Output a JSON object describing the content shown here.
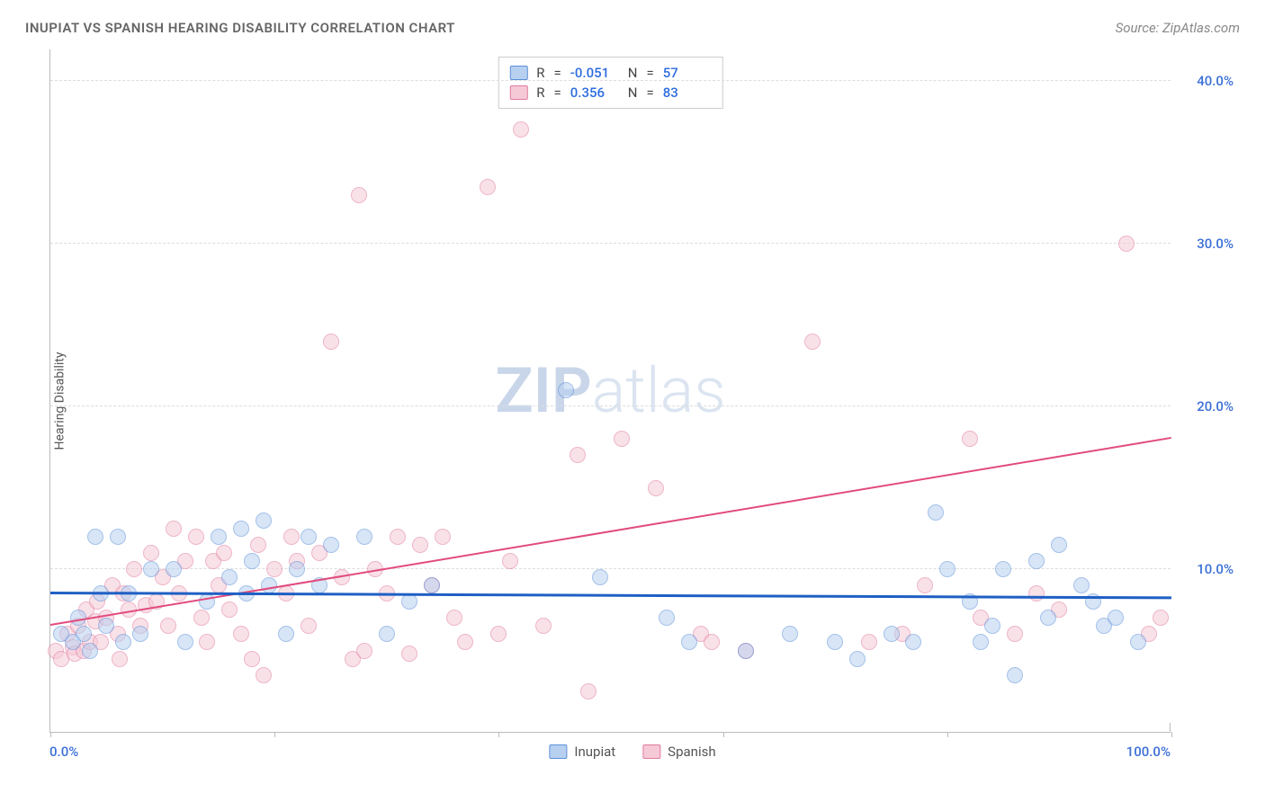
{
  "title": "INUPIAT VS SPANISH HEARING DISABILITY CORRELATION CHART",
  "source": "Source: ZipAtlas.com",
  "y_axis_label": "Hearing Disability",
  "watermark_bold": "ZIP",
  "watermark_light": "atlas",
  "watermark_color_bold": "#c9d6ea",
  "watermark_color_light": "#dbe4f0",
  "chart": {
    "type": "scatter",
    "xlim": [
      0,
      100
    ],
    "ylim": [
      0,
      42
    ],
    "y_ticks": [
      10,
      20,
      30,
      40
    ],
    "y_tick_labels": [
      "10.0%",
      "20.0%",
      "30.0%",
      "40.0%"
    ],
    "y_tick_color": "#3b6fd6",
    "x_ticks": [
      0,
      20,
      40,
      60,
      80,
      100
    ],
    "x_min_label": "0.0%",
    "x_max_label": "100.0%",
    "x_label_color": "#3b6fd6",
    "grid_color": "#dddddd",
    "background_color": "#ffffff",
    "point_radius": 9,
    "point_border_width": 1.5,
    "point_opacity": 0.55
  },
  "series": {
    "inupiat": {
      "label": "Inupiat",
      "fill": "#b8d0f0",
      "stroke": "#5a8fd8",
      "R": "-0.051",
      "N": "57",
      "trend": {
        "x1": 0,
        "y1": 8.5,
        "x2": 100,
        "y2": 8.2,
        "color": "#1f5fc4",
        "width": 2.5
      },
      "points": [
        [
          1,
          6
        ],
        [
          2,
          5.5
        ],
        [
          2.5,
          7
        ],
        [
          3,
          6
        ],
        [
          3.5,
          5
        ],
        [
          4,
          12
        ],
        [
          4.5,
          8.5
        ],
        [
          5,
          6.5
        ],
        [
          6,
          12
        ],
        [
          6.5,
          5.5
        ],
        [
          7,
          8.5
        ],
        [
          8,
          6
        ],
        [
          9,
          10
        ],
        [
          11,
          10
        ],
        [
          12,
          5.5
        ],
        [
          14,
          8
        ],
        [
          15,
          12
        ],
        [
          16,
          9.5
        ],
        [
          17,
          12.5
        ],
        [
          17.5,
          8.5
        ],
        [
          18,
          10.5
        ],
        [
          19,
          13
        ],
        [
          19.5,
          9
        ],
        [
          21,
          6
        ],
        [
          22,
          10
        ],
        [
          23,
          12
        ],
        [
          24,
          9
        ],
        [
          25,
          11.5
        ],
        [
          28,
          12
        ],
        [
          30,
          6
        ],
        [
          32,
          8
        ],
        [
          34,
          9
        ],
        [
          46,
          21
        ],
        [
          49,
          9.5
        ],
        [
          55,
          7
        ],
        [
          57,
          5.5
        ],
        [
          62,
          5
        ],
        [
          66,
          6
        ],
        [
          70,
          5.5
        ],
        [
          72,
          4.5
        ],
        [
          75,
          6
        ],
        [
          77,
          5.5
        ],
        [
          79,
          13.5
        ],
        [
          80,
          10
        ],
        [
          82,
          8
        ],
        [
          83,
          5.5
        ],
        [
          84,
          6.5
        ],
        [
          85,
          10
        ],
        [
          86,
          3.5
        ],
        [
          88,
          10.5
        ],
        [
          89,
          7
        ],
        [
          90,
          11.5
        ],
        [
          92,
          9
        ],
        [
          93,
          8
        ],
        [
          94,
          6.5
        ],
        [
          95,
          7
        ],
        [
          97,
          5.5
        ]
      ]
    },
    "spanish": {
      "label": "Spanish",
      "fill": "#f5c9d6",
      "stroke": "#e07a9e",
      "R": "0.356",
      "N": "83",
      "trend": {
        "x1": 0,
        "y1": 6.5,
        "x2": 100,
        "y2": 18,
        "color": "#e14b7e",
        "width": 2
      },
      "points": [
        [
          0.5,
          5
        ],
        [
          1,
          4.5
        ],
        [
          1.5,
          6
        ],
        [
          2,
          5.2
        ],
        [
          2.2,
          4.8
        ],
        [
          2.5,
          6.5
        ],
        [
          3,
          5
        ],
        [
          3.2,
          7.5
        ],
        [
          3.5,
          5.5
        ],
        [
          4,
          6.8
        ],
        [
          4.2,
          8
        ],
        [
          4.5,
          5.5
        ],
        [
          5,
          7
        ],
        [
          5.5,
          9
        ],
        [
          6,
          6
        ],
        [
          6.2,
          4.5
        ],
        [
          6.5,
          8.5
        ],
        [
          7,
          7.5
        ],
        [
          7.5,
          10
        ],
        [
          8,
          6.5
        ],
        [
          8.5,
          7.8
        ],
        [
          9,
          11
        ],
        [
          9.5,
          8
        ],
        [
          10,
          9.5
        ],
        [
          10.5,
          6.5
        ],
        [
          11,
          12.5
        ],
        [
          11.5,
          8.5
        ],
        [
          12,
          10.5
        ],
        [
          13,
          12
        ],
        [
          13.5,
          7
        ],
        [
          14,
          5.5
        ],
        [
          14.5,
          10.5
        ],
        [
          15,
          9
        ],
        [
          15.5,
          11
        ],
        [
          16,
          7.5
        ],
        [
          17,
          6
        ],
        [
          18,
          4.5
        ],
        [
          18.5,
          11.5
        ],
        [
          19,
          3.5
        ],
        [
          20,
          10
        ],
        [
          21,
          8.5
        ],
        [
          21.5,
          12
        ],
        [
          22,
          10.5
        ],
        [
          23,
          6.5
        ],
        [
          24,
          11
        ],
        [
          25,
          24
        ],
        [
          26,
          9.5
        ],
        [
          27,
          4.5
        ],
        [
          27.5,
          33
        ],
        [
          28,
          5
        ],
        [
          29,
          10
        ],
        [
          30,
          8.5
        ],
        [
          31,
          12
        ],
        [
          32,
          4.8
        ],
        [
          33,
          11.5
        ],
        [
          34,
          9
        ],
        [
          35,
          12
        ],
        [
          36,
          7
        ],
        [
          37,
          5.5
        ],
        [
          39,
          33.5
        ],
        [
          40,
          6
        ],
        [
          41,
          10.5
        ],
        [
          42,
          37
        ],
        [
          44,
          6.5
        ],
        [
          47,
          17
        ],
        [
          48,
          2.5
        ],
        [
          51,
          18
        ],
        [
          54,
          15
        ],
        [
          58,
          6
        ],
        [
          59,
          5.5
        ],
        [
          62,
          5
        ],
        [
          68,
          24
        ],
        [
          73,
          5.5
        ],
        [
          76,
          6
        ],
        [
          78,
          9
        ],
        [
          82,
          18
        ],
        [
          83,
          7
        ],
        [
          86,
          6
        ],
        [
          88,
          8.5
        ],
        [
          90,
          7.5
        ],
        [
          96,
          30
        ],
        [
          98,
          6
        ],
        [
          99,
          7
        ]
      ]
    }
  },
  "legend_top": {
    "r_label": "R",
    "n_label": "N",
    "value_color": "#2d6cdf"
  },
  "legend_bottom_color": "#555555"
}
